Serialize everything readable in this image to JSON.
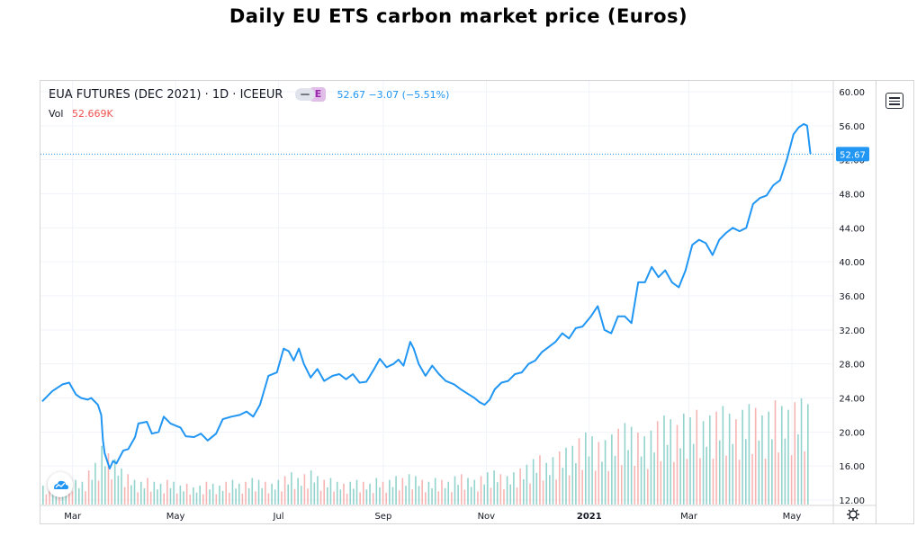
{
  "page": {
    "title": "Daily EU ETS carbon market price (Euros)"
  },
  "legend": {
    "symbol": "EUA FUTURES (DEC 2021) · 1D · ICEEUR",
    "badge": "E",
    "quote": "52.67  −3.07 (−5.51%)"
  },
  "volume": {
    "label": "Vol",
    "value": "52.669K"
  },
  "price_tag": "52.67",
  "colors": {
    "line": "#2196f3",
    "vol_up": "#80cbc4",
    "vol_down": "#f4a8a6",
    "grid": "#f0f3fa",
    "axis_text": "#131722"
  },
  "icons": {
    "menu": "hamburger-menu-icon",
    "settings": "gear-icon",
    "logo": "cloud-logo-icon"
  },
  "chart_data": {
    "type": "line",
    "title": "Daily EU ETS carbon market price (Euros)",
    "xlabel": "",
    "ylabel": "",
    "ylim": [
      12,
      60
    ],
    "grid": true,
    "yticks": [
      12,
      16,
      20,
      24,
      28,
      32,
      36,
      40,
      44,
      48,
      52,
      56,
      60
    ],
    "ytick_labels": [
      "12.00",
      "16.00",
      "20.00",
      "24.00",
      "28.00",
      "32.00",
      "36.00",
      "40.00",
      "44.00",
      "48.00",
      "52.00",
      "56.00",
      "60.00"
    ],
    "x_ticks": [
      {
        "label": "Mar",
        "date": "2020-03-01"
      },
      {
        "label": "May",
        "date": "2020-05-01"
      },
      {
        "label": "Jul",
        "date": "2020-07-01"
      },
      {
        "label": "Sep",
        "date": "2020-09-01"
      },
      {
        "label": "Nov",
        "date": "2020-11-01"
      },
      {
        "label": "2021",
        "date": "2021-01-01",
        "bold": true
      },
      {
        "label": "Mar",
        "date": "2021-03-01"
      },
      {
        "label": "May",
        "date": "2021-05-01"
      }
    ],
    "x_range": [
      "2020-02-11",
      "2021-05-25"
    ],
    "series": [
      {
        "values": [
          [
            "2020-02-12",
            23.6
          ],
          [
            "2020-02-18",
            24.8
          ],
          [
            "2020-02-24",
            25.6
          ],
          [
            "2020-02-28",
            25.8
          ],
          [
            "2020-03-03",
            24.4
          ],
          [
            "2020-03-06",
            24.0
          ],
          [
            "2020-03-10",
            23.8
          ],
          [
            "2020-03-12",
            24.0
          ],
          [
            "2020-03-16",
            23.2
          ],
          [
            "2020-03-18",
            22.0
          ],
          [
            "2020-03-19",
            19.0
          ],
          [
            "2020-03-20",
            17.5
          ],
          [
            "2020-03-23",
            15.7
          ],
          [
            "2020-03-25",
            16.6
          ],
          [
            "2020-03-27",
            16.3
          ],
          [
            "2020-03-31",
            17.8
          ],
          [
            "2020-04-03",
            18.0
          ],
          [
            "2020-04-07",
            19.4
          ],
          [
            "2020-04-09",
            21.0
          ],
          [
            "2020-04-14",
            21.2
          ],
          [
            "2020-04-17",
            19.8
          ],
          [
            "2020-04-21",
            20.0
          ],
          [
            "2020-04-24",
            21.8
          ],
          [
            "2020-04-28",
            21.0
          ],
          [
            "2020-05-04",
            20.5
          ],
          [
            "2020-05-07",
            19.5
          ],
          [
            "2020-05-12",
            19.4
          ],
          [
            "2020-05-16",
            19.8
          ],
          [
            "2020-05-20",
            19.0
          ],
          [
            "2020-05-25",
            19.8
          ],
          [
            "2020-05-29",
            21.5
          ],
          [
            "2020-06-03",
            21.8
          ],
          [
            "2020-06-08",
            22.0
          ],
          [
            "2020-06-12",
            22.4
          ],
          [
            "2020-06-16",
            21.8
          ],
          [
            "2020-06-20",
            23.2
          ],
          [
            "2020-06-25",
            26.6
          ],
          [
            "2020-06-30",
            27.0
          ],
          [
            "2020-07-04",
            29.8
          ],
          [
            "2020-07-07",
            29.5
          ],
          [
            "2020-07-10",
            28.4
          ],
          [
            "2020-07-13",
            29.8
          ],
          [
            "2020-07-16",
            28.0
          ],
          [
            "2020-07-20",
            26.4
          ],
          [
            "2020-07-24",
            27.4
          ],
          [
            "2020-07-28",
            26.0
          ],
          [
            "2020-08-02",
            26.6
          ],
          [
            "2020-08-06",
            26.8
          ],
          [
            "2020-08-10",
            26.2
          ],
          [
            "2020-08-14",
            26.8
          ],
          [
            "2020-08-18",
            25.8
          ],
          [
            "2020-08-22",
            25.9
          ],
          [
            "2020-08-26",
            27.2
          ],
          [
            "2020-08-30",
            28.6
          ],
          [
            "2020-09-03",
            27.6
          ],
          [
            "2020-09-07",
            28.0
          ],
          [
            "2020-09-10",
            28.5
          ],
          [
            "2020-09-13",
            27.8
          ],
          [
            "2020-09-17",
            30.6
          ],
          [
            "2020-09-19",
            29.8
          ],
          [
            "2020-09-22",
            28.0
          ],
          [
            "2020-09-26",
            26.6
          ],
          [
            "2020-09-30",
            27.8
          ],
          [
            "2020-10-04",
            26.8
          ],
          [
            "2020-10-08",
            26.0
          ],
          [
            "2020-10-13",
            25.6
          ],
          [
            "2020-10-17",
            25.0
          ],
          [
            "2020-10-21",
            24.5
          ],
          [
            "2020-10-25",
            24.0
          ],
          [
            "2020-10-28",
            23.5
          ],
          [
            "2020-10-31",
            23.2
          ],
          [
            "2020-11-03",
            23.8
          ],
          [
            "2020-11-06",
            25.0
          ],
          [
            "2020-11-10",
            25.8
          ],
          [
            "2020-11-14",
            26.0
          ],
          [
            "2020-11-18",
            26.8
          ],
          [
            "2020-11-22",
            27.0
          ],
          [
            "2020-11-26",
            28.0
          ],
          [
            "2020-11-30",
            28.4
          ],
          [
            "2020-12-04",
            29.4
          ],
          [
            "2020-12-08",
            30.0
          ],
          [
            "2020-12-12",
            30.6
          ],
          [
            "2020-12-16",
            31.6
          ],
          [
            "2020-12-20",
            31.0
          ],
          [
            "2020-12-24",
            32.2
          ],
          [
            "2020-12-28",
            32.4
          ],
          [
            "2021-01-02",
            33.6
          ],
          [
            "2021-01-06",
            34.8
          ],
          [
            "2021-01-10",
            32.0
          ],
          [
            "2021-01-14",
            31.6
          ],
          [
            "2021-01-18",
            33.6
          ],
          [
            "2021-01-22",
            33.6
          ],
          [
            "2021-01-26",
            32.8
          ],
          [
            "2021-01-30",
            37.6
          ],
          [
            "2021-02-03",
            37.6
          ],
          [
            "2021-02-07",
            39.4
          ],
          [
            "2021-02-11",
            38.2
          ],
          [
            "2021-02-15",
            39.0
          ],
          [
            "2021-02-19",
            37.6
          ],
          [
            "2021-02-23",
            37.0
          ],
          [
            "2021-02-27",
            39.0
          ],
          [
            "2021-03-03",
            42.0
          ],
          [
            "2021-03-07",
            42.6
          ],
          [
            "2021-03-11",
            42.2
          ],
          [
            "2021-03-15",
            40.8
          ],
          [
            "2021-03-19",
            42.6
          ],
          [
            "2021-03-23",
            43.4
          ],
          [
            "2021-03-27",
            44.0
          ],
          [
            "2021-03-31",
            43.6
          ],
          [
            "2021-04-04",
            44.0
          ],
          [
            "2021-04-08",
            46.8
          ],
          [
            "2021-04-12",
            47.5
          ],
          [
            "2021-04-16",
            47.8
          ],
          [
            "2021-04-20",
            49.0
          ],
          [
            "2021-04-24",
            49.6
          ],
          [
            "2021-04-28",
            52.0
          ],
          [
            "2021-05-02",
            55.0
          ],
          [
            "2021-05-05",
            55.8
          ],
          [
            "2021-05-08",
            56.2
          ],
          [
            "2021-05-10",
            56.0
          ],
          [
            "2021-05-12",
            52.67
          ]
        ]
      }
    ],
    "volume_series": [
      10,
      12,
      9,
      11,
      14,
      13,
      12,
      18,
      22,
      31,
      27,
      24,
      19,
      16,
      13,
      12,
      14,
      12,
      11,
      13,
      12,
      10,
      11,
      9,
      10,
      12,
      11,
      10,
      12,
      13,
      11,
      12,
      14,
      13,
      12,
      11,
      13,
      15,
      17,
      14,
      16,
      18,
      15,
      13,
      14,
      12,
      11,
      12,
      13,
      12,
      11,
      14,
      12,
      13,
      15,
      14,
      16,
      15,
      13,
      12,
      14,
      13,
      12,
      15,
      16,
      14,
      13,
      15,
      17,
      18,
      16,
      15,
      17,
      19,
      21,
      24,
      26,
      22,
      25,
      28,
      30,
      31,
      35,
      38,
      36,
      33,
      34,
      37,
      40,
      43,
      41,
      38,
      36,
      39,
      44,
      47,
      45,
      42,
      48,
      46,
      50,
      44,
      47,
      49,
      52,
      48,
      45,
      50,
      53,
      51,
      47,
      49,
      55,
      52,
      50,
      54,
      56,
      53
    ]
  }
}
